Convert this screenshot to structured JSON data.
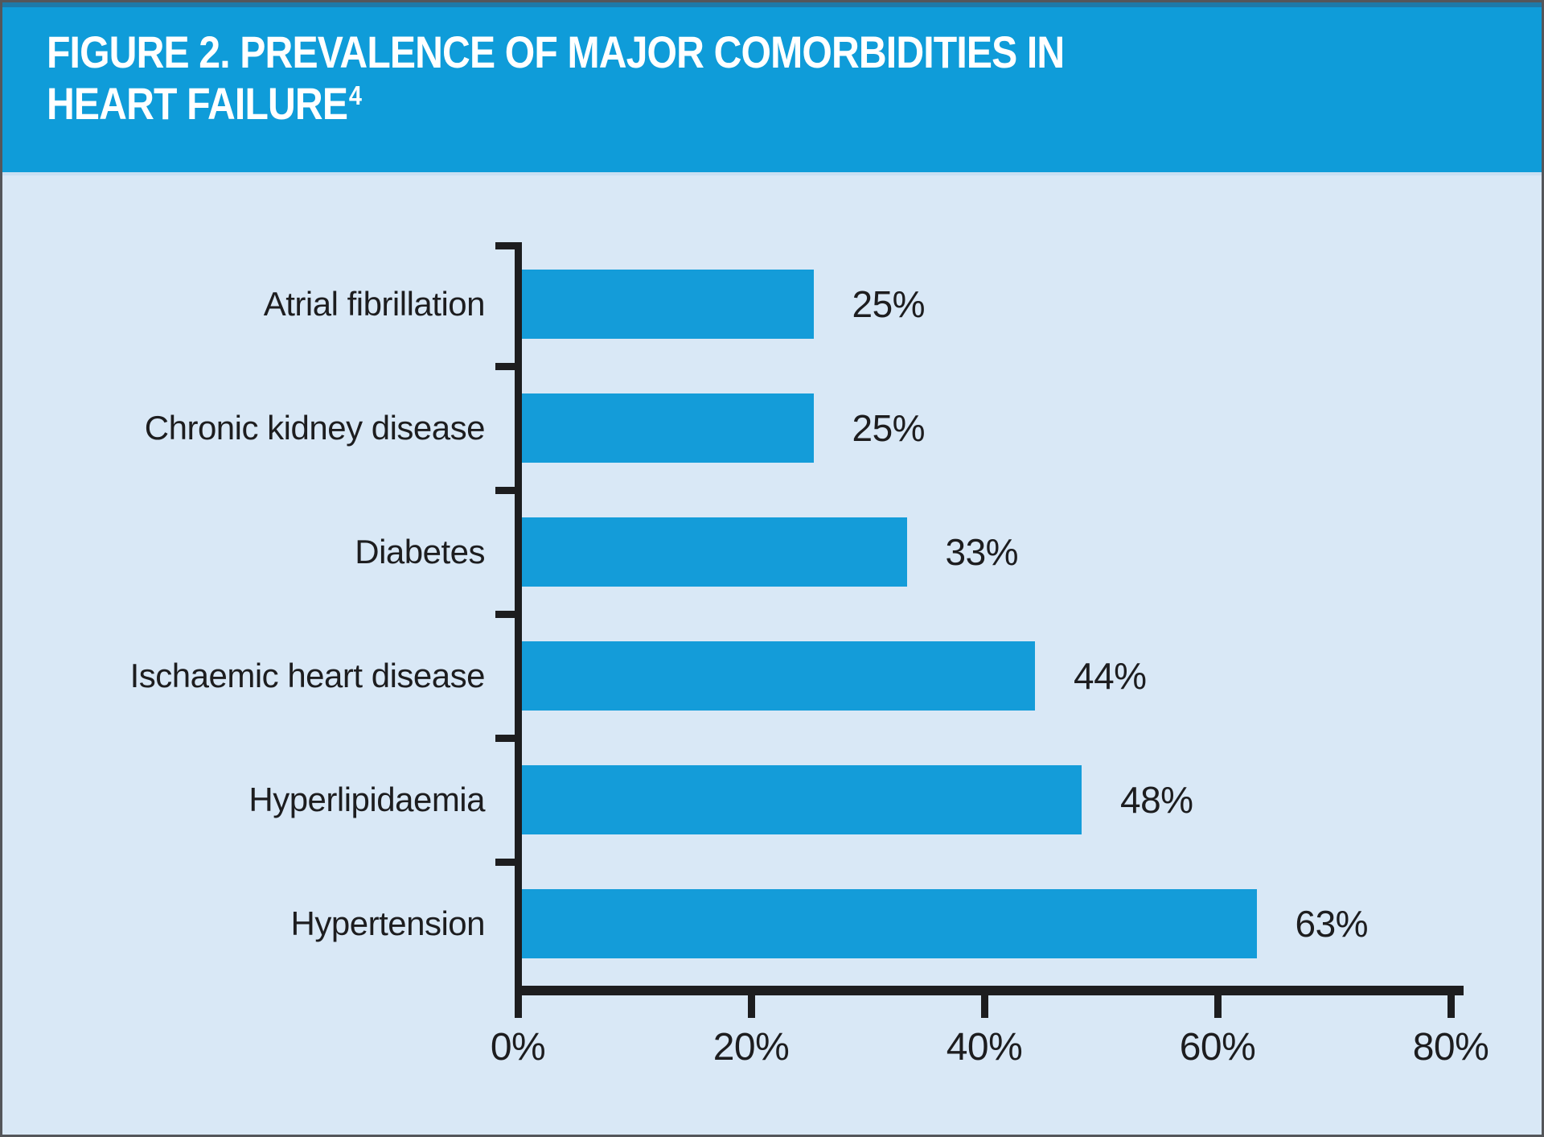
{
  "header": {
    "title_line1": "FIGURE 2. PREVALENCE OF MAJOR COMORBIDITIES IN",
    "title_line2": "HEART FAILURE",
    "reference_superscript": "4"
  },
  "chart_data": {
    "type": "bar",
    "orientation": "horizontal",
    "title": "FIGURE 2. PREVALENCE OF MAJOR COMORBIDITIES IN HEART FAILURE (ref 4)",
    "categories": [
      "Atrial fibrillation",
      "Chronic kidney disease",
      "Diabetes",
      "Ischaemic heart disease",
      "Hyperlipidaemia",
      "Hypertension"
    ],
    "values": [
      25,
      25,
      33,
      44,
      48,
      63
    ],
    "value_labels": [
      "25%",
      "25%",
      "33%",
      "44%",
      "48%",
      "63%"
    ],
    "x_tick_labels": [
      "0%",
      "20%",
      "40%",
      "60%",
      "80%"
    ],
    "x_tick_values": [
      0,
      20,
      40,
      60,
      80
    ],
    "xlim": [
      0,
      80
    ],
    "xlabel": "",
    "ylabel": "",
    "grid": false,
    "legend": "none",
    "colors": {
      "bar": "#149CD9",
      "header_band": "#0F9CD9",
      "header_top_edge": "#1E79A8",
      "header_divider": "#C9DFF2",
      "plot_background": "#D9E8F6",
      "axis": "#1D1D1F",
      "label_text": "#1D1D1F",
      "title_text": "#FFFFFF",
      "outer_border": "#54565A"
    }
  }
}
